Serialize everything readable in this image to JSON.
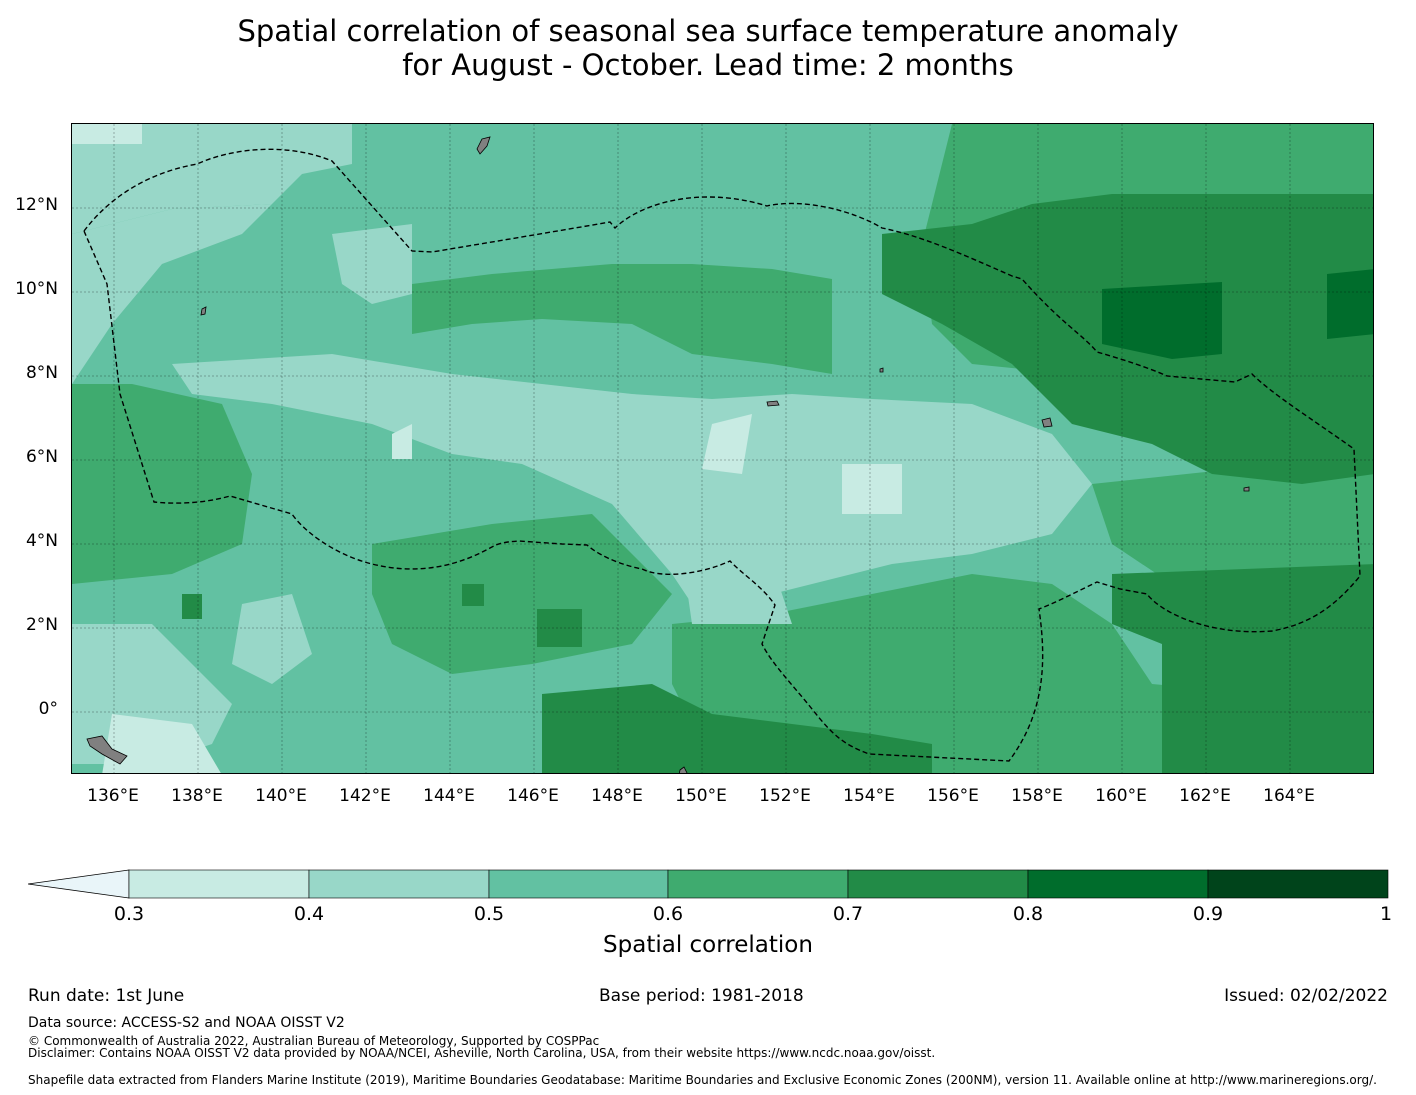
{
  "title": {
    "line1": "Spatial correlation of seasonal sea surface temperature anomaly",
    "line2": "for August - October. Lead time: 2 months"
  },
  "map": {
    "lat_labels": [
      "12°N",
      "10°N",
      "8°N",
      "6°N",
      "4°N",
      "2°N",
      "0°"
    ],
    "lon_labels": [
      "136°E",
      "138°E",
      "140°E",
      "142°E",
      "144°E",
      "146°E",
      "148°E",
      "150°E",
      "152°E",
      "154°E",
      "156°E",
      "158°E",
      "160°E",
      "162°E",
      "164°E"
    ],
    "lon_range": [
      135,
      166
    ],
    "lat_range": [
      -1.5,
      14
    ],
    "land_color": "#808080",
    "boundary_style": "dashed black line"
  },
  "colorbar": {
    "label": "Spatial correlation",
    "ticks": [
      "0.3",
      "0.4",
      "0.5",
      "0.6",
      "0.7",
      "0.8",
      "0.9",
      "1"
    ],
    "under_color": "#e9f5f9",
    "colors": [
      "#c8ebe3",
      "#98d7c8",
      "#62c1a2",
      "#3fab6f",
      "#228b47",
      "#006d2c",
      "#00441b"
    ]
  },
  "footer": {
    "run_date": "Run date: 1st June",
    "base_period": "Base period: 1981-2018",
    "issued": "Issued: 02/02/2022",
    "data_source": "Data source: ACCESS-S2 and NOAA OISST V2",
    "copyright": "© Commonwealth of Australia 2022, Australian Bureau of Meteorology, Supported by COSPPac",
    "disclaimer": "Disclaimer: Contains NOAA OISST V2 data provided by NOAA/NCEI, Asheville, North Carolina, USA, from their website https://www.ncdc.noaa.gov/oisst.",
    "shapefile": "Shapefile data extracted from Flanders Marine Institute (2019), Maritime Boundaries Geodatabase: Maritime Boundaries and Exclusive Economic Zones (200NM), version 11. Available online at http://www.marineregions.org/."
  }
}
